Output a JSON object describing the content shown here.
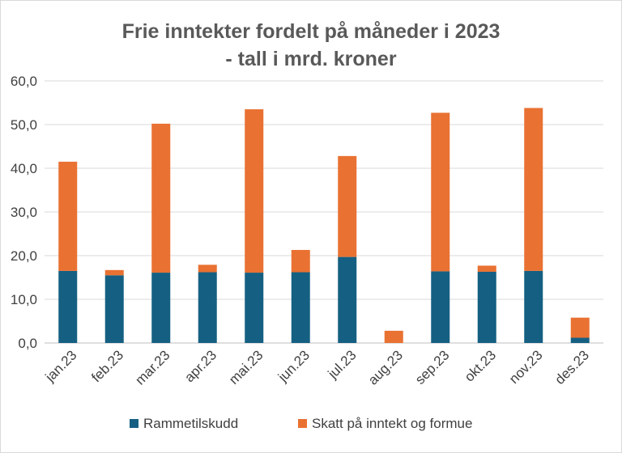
{
  "chart_data": {
    "type": "bar",
    "stacked": true,
    "title_lines": [
      "Frie inntekter fordelt på måneder i 2023",
      "- tall i mrd. kroner"
    ],
    "categories": [
      "jan.23",
      "feb.23",
      "mar.23",
      "apr.23",
      "mai.23",
      "jun.23",
      "jul.23",
      "aug.23",
      "sep.23",
      "okt.23",
      "nov.23",
      "des.23"
    ],
    "series": [
      {
        "name": "Rammetilskudd",
        "color": "#156082",
        "values": [
          16.5,
          15.5,
          16.1,
          16.2,
          16.1,
          16.2,
          19.7,
          0.0,
          16.4,
          16.3,
          16.5,
          1.2
        ]
      },
      {
        "name": "Skatt på inntekt og formue",
        "color": "#e97132",
        "values": [
          25.0,
          1.2,
          34.1,
          1.7,
          37.4,
          5.1,
          23.1,
          2.8,
          36.3,
          1.4,
          37.3,
          4.6
        ]
      }
    ],
    "ylim": [
      0,
      60
    ],
    "yticks": [
      0,
      10,
      20,
      30,
      40,
      50,
      60
    ],
    "ytick_labels": [
      "0,0",
      "10,0",
      "20,0",
      "30,0",
      "40,0",
      "50,0",
      "60,0"
    ],
    "grid": true,
    "legend": "bottom"
  }
}
